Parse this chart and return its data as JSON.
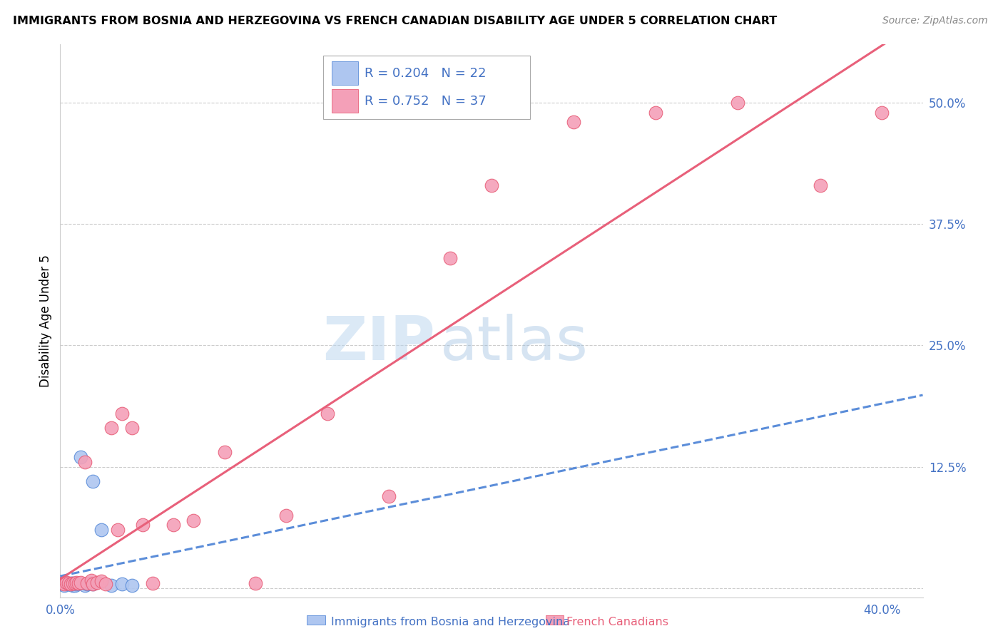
{
  "title": "IMMIGRANTS FROM BOSNIA AND HERZEGOVINA VS FRENCH CANADIAN DISABILITY AGE UNDER 5 CORRELATION CHART",
  "source": "Source: ZipAtlas.com",
  "ylabel": "Disability Age Under 5",
  "xlim": [
    0.0,
    0.42
  ],
  "ylim": [
    -0.01,
    0.56
  ],
  "xticks": [
    0.0,
    0.1,
    0.2,
    0.3,
    0.4
  ],
  "xtick_labels": [
    "0.0%",
    "",
    "",
    "",
    "40.0%"
  ],
  "yticks": [
    0.0,
    0.125,
    0.25,
    0.375,
    0.5
  ],
  "ytick_labels": [
    "",
    "12.5%",
    "25.0%",
    "37.5%",
    "50.0%"
  ],
  "background_color": "#ffffff",
  "grid_color": "#cccccc",
  "watermark_zip": "ZIP",
  "watermark_atlas": "atlas",
  "bosnia_scatter_color": "#aec6f0",
  "bosnia_line_color": "#5b8dd9",
  "french_scatter_color": "#f4a0b8",
  "french_line_color": "#e8607a",
  "legend_text_color": "#4472c4",
  "axis_label_color": "#4472c4",
  "bosnia_R": "0.204",
  "bosnia_N": "22",
  "french_R": "0.752",
  "french_N": "37",
  "bosnia_x": [
    0.001,
    0.002,
    0.002,
    0.003,
    0.003,
    0.004,
    0.005,
    0.005,
    0.006,
    0.006,
    0.007,
    0.008,
    0.01,
    0.012,
    0.013,
    0.015,
    0.016,
    0.016,
    0.02,
    0.025,
    0.03,
    0.035
  ],
  "bosnia_y": [
    0.004,
    0.003,
    0.005,
    0.004,
    0.005,
    0.004,
    0.004,
    0.005,
    0.003,
    0.005,
    0.003,
    0.004,
    0.135,
    0.003,
    0.004,
    0.005,
    0.004,
    0.11,
    0.06,
    0.003,
    0.004,
    0.003
  ],
  "french_x": [
    0.001,
    0.002,
    0.003,
    0.004,
    0.005,
    0.006,
    0.007,
    0.008,
    0.009,
    0.01,
    0.012,
    0.013,
    0.015,
    0.016,
    0.018,
    0.02,
    0.022,
    0.025,
    0.028,
    0.03,
    0.035,
    0.04,
    0.045,
    0.055,
    0.065,
    0.08,
    0.095,
    0.11,
    0.13,
    0.16,
    0.19,
    0.21,
    0.25,
    0.29,
    0.33,
    0.37,
    0.4
  ],
  "french_y": [
    0.005,
    0.004,
    0.006,
    0.005,
    0.004,
    0.005,
    0.005,
    0.006,
    0.005,
    0.006,
    0.13,
    0.005,
    0.008,
    0.004,
    0.006,
    0.007,
    0.004,
    0.165,
    0.06,
    0.18,
    0.165,
    0.065,
    0.005,
    0.065,
    0.07,
    0.14,
    0.005,
    0.075,
    0.18,
    0.095,
    0.34,
    0.415,
    0.48,
    0.49,
    0.5,
    0.415,
    0.49
  ]
}
